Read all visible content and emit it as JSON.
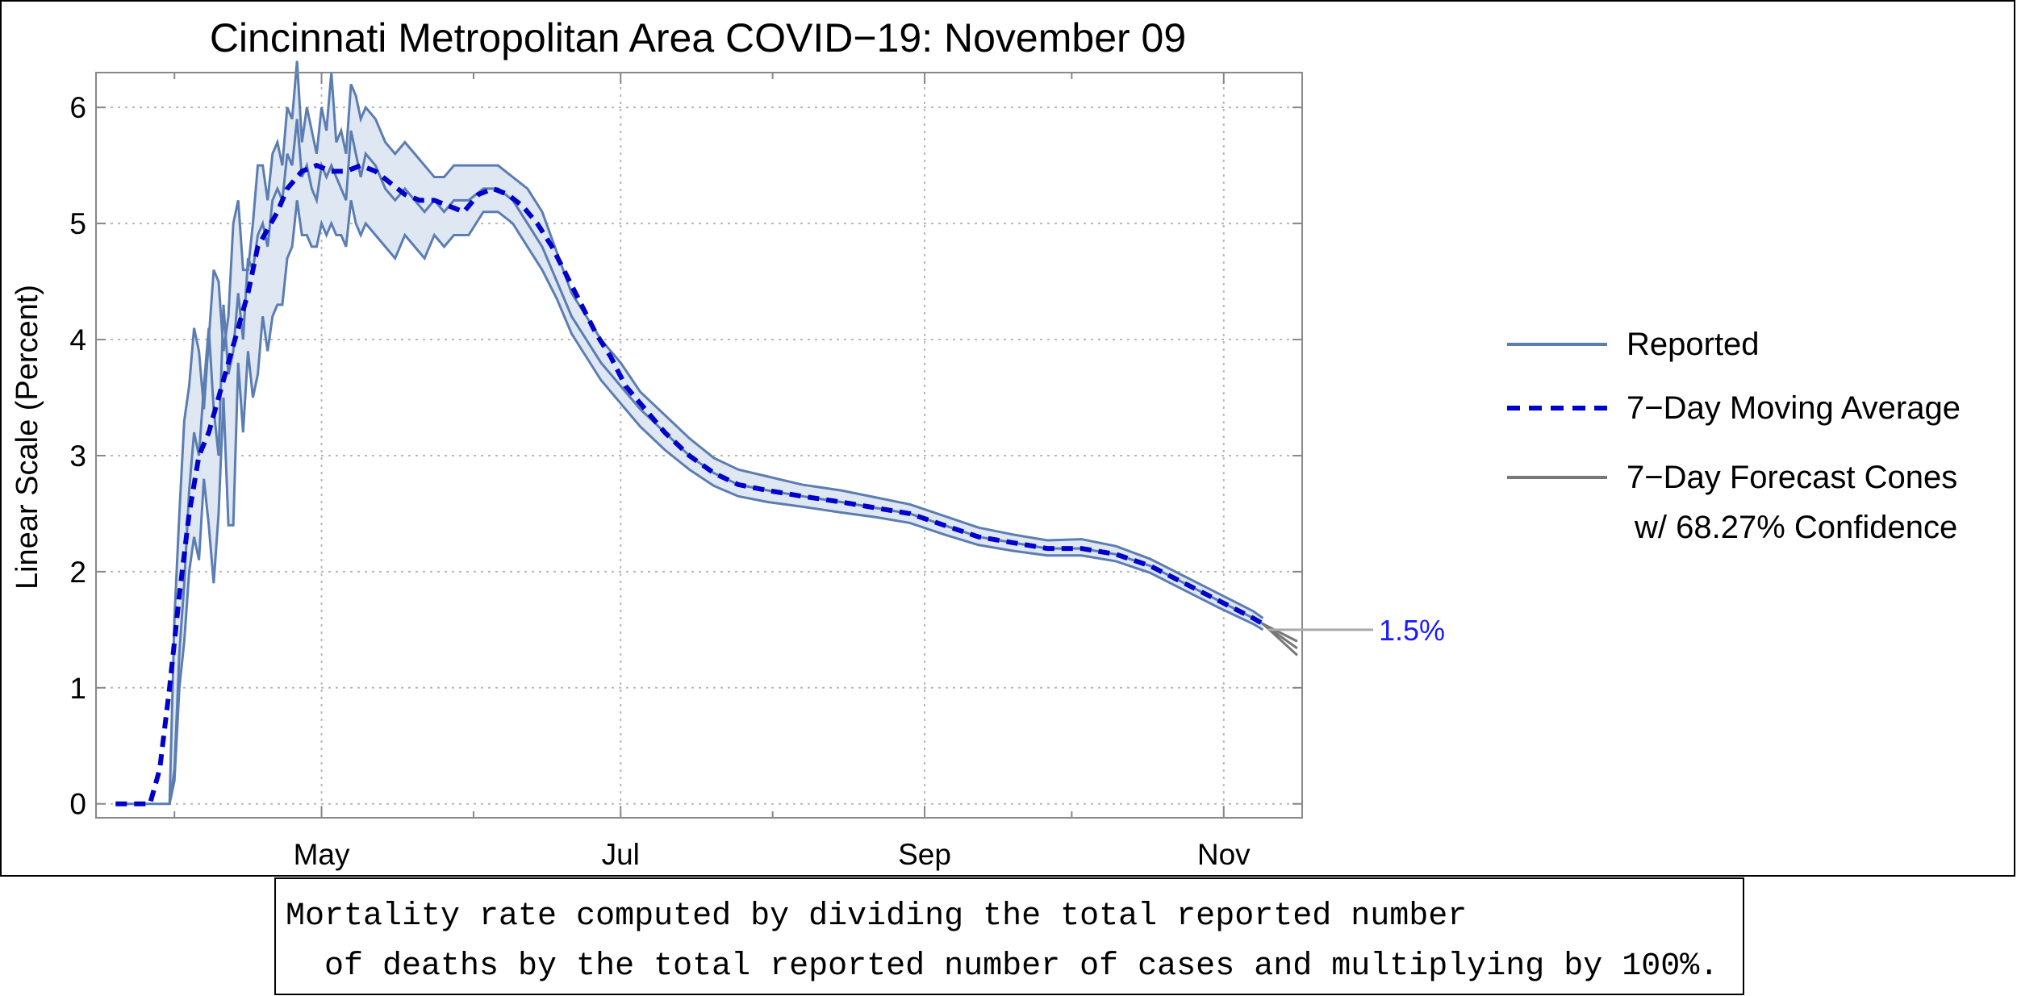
{
  "chart_data": {
    "type": "line",
    "title": "Cincinnati Metropolitan Area COVID−19: November 09",
    "ylabel": "Linear Scale (Percent)",
    "xlabel": "",
    "ylim": [
      -0.12,
      6.3
    ],
    "xlim": [
      "2020-03-16",
      "2020-11-17"
    ],
    "yticks": [
      0,
      1,
      2,
      3,
      4,
      5,
      6
    ],
    "xticks": [
      {
        "label": "May",
        "date": "2020-05-01"
      },
      {
        "label": "Jul",
        "date": "2020-07-01"
      },
      {
        "label": "Sep",
        "date": "2020-09-01"
      },
      {
        "label": "Nov",
        "date": "2020-11-01"
      }
    ],
    "grid": true,
    "legend_position": "right",
    "legend": [
      {
        "label": "Reported",
        "style": "solid",
        "color": "#5b7db1"
      },
      {
        "label": "7−Day Moving Average",
        "style": "dashed",
        "color": "#0000cc"
      },
      {
        "label": "7−Day Forecast Cones",
        "label2": "w/ 68.27% Confidence",
        "style": "solid",
        "color": "#777777"
      }
    ],
    "callout": {
      "label": "1.5%",
      "value": 1.5
    },
    "colors": {
      "reported": "#5b7db1",
      "band_fill": "#dfe7f2",
      "moving_average": "#0000cc",
      "forecast": "#777777",
      "callout": "#1a1aff"
    },
    "series": [
      {
        "name": "Reported",
        "points": [
          [
            "2020-03-20",
            0
          ],
          [
            "2020-03-27",
            0
          ],
          [
            "2020-03-31",
            0
          ],
          [
            "2020-04-01",
            0.3
          ],
          [
            "2020-04-02",
            1.3
          ],
          [
            "2020-04-03",
            1.9
          ],
          [
            "2020-04-04",
            2.7
          ],
          [
            "2020-04-05",
            3.2
          ],
          [
            "2020-04-06",
            3.0
          ],
          [
            "2020-04-07",
            3.6
          ],
          [
            "2020-04-08",
            4.1
          ],
          [
            "2020-04-09",
            3.4
          ],
          [
            "2020-04-10",
            3.0
          ],
          [
            "2020-04-11",
            4.3
          ],
          [
            "2020-04-12",
            3.7
          ],
          [
            "2020-04-13",
            3.9
          ],
          [
            "2020-04-14",
            4.4
          ],
          [
            "2020-04-15",
            4.0
          ],
          [
            "2020-04-16",
            4.7
          ],
          [
            "2020-04-17",
            4.6
          ],
          [
            "2020-04-18",
            4.9
          ],
          [
            "2020-04-19",
            5.0
          ],
          [
            "2020-04-20",
            4.8
          ],
          [
            "2020-04-21",
            5.2
          ],
          [
            "2020-04-22",
            5.3
          ],
          [
            "2020-04-23",
            5.2
          ],
          [
            "2020-04-24",
            5.6
          ],
          [
            "2020-04-25",
            5.5
          ],
          [
            "2020-04-26",
            5.9
          ],
          [
            "2020-04-27",
            5.4
          ],
          [
            "2020-04-28",
            5.5
          ],
          [
            "2020-04-29",
            5.3
          ],
          [
            "2020-04-30",
            5.2
          ],
          [
            "2020-05-01",
            5.5
          ],
          [
            "2020-05-02",
            5.4
          ],
          [
            "2020-05-03",
            5.5
          ],
          [
            "2020-05-04",
            5.4
          ],
          [
            "2020-05-05",
            5.3
          ],
          [
            "2020-05-06",
            5.2
          ],
          [
            "2020-05-07",
            5.8
          ],
          [
            "2020-05-08",
            5.6
          ],
          [
            "2020-05-09",
            5.4
          ],
          [
            "2020-05-10",
            5.6
          ],
          [
            "2020-05-12",
            5.5
          ],
          [
            "2020-05-14",
            5.3
          ],
          [
            "2020-05-16",
            5.2
          ],
          [
            "2020-05-18",
            5.3
          ],
          [
            "2020-05-20",
            5.2
          ],
          [
            "2020-05-22",
            5.1
          ],
          [
            "2020-05-24",
            5.2
          ],
          [
            "2020-05-26",
            5.1
          ],
          [
            "2020-05-28",
            5.2
          ],
          [
            "2020-05-31",
            5.2
          ],
          [
            "2020-06-03",
            5.3
          ],
          [
            "2020-06-06",
            5.3
          ],
          [
            "2020-06-09",
            5.2
          ],
          [
            "2020-06-12",
            5.0
          ],
          [
            "2020-06-15",
            4.8
          ],
          [
            "2020-06-18",
            4.5
          ],
          [
            "2020-06-21",
            4.2
          ],
          [
            "2020-06-24",
            4.0
          ],
          [
            "2020-06-27",
            3.8
          ],
          [
            "2020-07-01",
            3.6
          ],
          [
            "2020-07-05",
            3.4
          ],
          [
            "2020-07-10",
            3.2
          ],
          [
            "2020-07-15",
            3.0
          ],
          [
            "2020-07-20",
            2.85
          ],
          [
            "2020-07-25",
            2.75
          ],
          [
            "2020-07-31",
            2.7
          ],
          [
            "2020-08-07",
            2.65
          ],
          [
            "2020-08-15",
            2.6
          ],
          [
            "2020-08-22",
            2.55
          ],
          [
            "2020-08-29",
            2.5
          ],
          [
            "2020-09-05",
            2.4
          ],
          [
            "2020-09-12",
            2.3
          ],
          [
            "2020-09-19",
            2.25
          ],
          [
            "2020-09-26",
            2.2
          ],
          [
            "2020-10-03",
            2.2
          ],
          [
            "2020-10-10",
            2.15
          ],
          [
            "2020-10-17",
            2.05
          ],
          [
            "2020-10-24",
            1.9
          ],
          [
            "2020-10-31",
            1.75
          ],
          [
            "2020-11-07",
            1.6
          ],
          [
            "2020-11-09",
            1.55
          ]
        ]
      },
      {
        "name": "7−Day Moving Average",
        "points": [
          [
            "2020-03-20",
            0
          ],
          [
            "2020-03-27",
            0
          ],
          [
            "2020-03-29",
            0.3
          ],
          [
            "2020-03-31",
            1.0
          ],
          [
            "2020-04-02",
            1.8
          ],
          [
            "2020-04-04",
            2.5
          ],
          [
            "2020-04-06",
            3.0
          ],
          [
            "2020-04-08",
            3.2
          ],
          [
            "2020-04-10",
            3.5
          ],
          [
            "2020-04-12",
            3.8
          ],
          [
            "2020-04-14",
            4.1
          ],
          [
            "2020-04-16",
            4.4
          ],
          [
            "2020-04-18",
            4.8
          ],
          [
            "2020-04-20",
            4.95
          ],
          [
            "2020-04-22",
            5.1
          ],
          [
            "2020-04-24",
            5.3
          ],
          [
            "2020-04-27",
            5.45
          ],
          [
            "2020-04-30",
            5.5
          ],
          [
            "2020-05-03",
            5.45
          ],
          [
            "2020-05-06",
            5.45
          ],
          [
            "2020-05-09",
            5.5
          ],
          [
            "2020-05-12",
            5.45
          ],
          [
            "2020-05-15",
            5.35
          ],
          [
            "2020-05-18",
            5.25
          ],
          [
            "2020-05-21",
            5.2
          ],
          [
            "2020-05-24",
            5.2
          ],
          [
            "2020-05-27",
            5.15
          ],
          [
            "2020-05-30",
            5.1
          ],
          [
            "2020-06-02",
            5.25
          ],
          [
            "2020-06-05",
            5.3
          ],
          [
            "2020-06-08",
            5.25
          ],
          [
            "2020-06-11",
            5.15
          ],
          [
            "2020-06-14",
            5.0
          ],
          [
            "2020-06-17",
            4.8
          ],
          [
            "2020-06-20",
            4.55
          ],
          [
            "2020-06-23",
            4.3
          ],
          [
            "2020-06-26",
            4.05
          ],
          [
            "2020-06-29",
            3.85
          ],
          [
            "2020-07-02",
            3.6
          ],
          [
            "2020-07-06",
            3.4
          ],
          [
            "2020-07-10",
            3.2
          ],
          [
            "2020-07-15",
            3.0
          ],
          [
            "2020-07-20",
            2.85
          ],
          [
            "2020-07-25",
            2.75
          ],
          [
            "2020-07-31",
            2.7
          ],
          [
            "2020-08-07",
            2.65
          ],
          [
            "2020-08-15",
            2.6
          ],
          [
            "2020-08-22",
            2.55
          ],
          [
            "2020-08-29",
            2.5
          ],
          [
            "2020-09-05",
            2.4
          ],
          [
            "2020-09-12",
            2.3
          ],
          [
            "2020-09-19",
            2.25
          ],
          [
            "2020-09-26",
            2.2
          ],
          [
            "2020-10-03",
            2.2
          ],
          [
            "2020-10-10",
            2.15
          ],
          [
            "2020-10-17",
            2.05
          ],
          [
            "2020-10-24",
            1.9
          ],
          [
            "2020-10-31",
            1.75
          ],
          [
            "2020-11-07",
            1.6
          ],
          [
            "2020-11-09",
            1.55
          ]
        ]
      }
    ],
    "band": {
      "name": "Reported",
      "points": [
        [
          "2020-03-31",
          0,
          0
        ],
        [
          "2020-04-01",
          0.2,
          1.6
        ],
        [
          "2020-04-02",
          1.0,
          2.5
        ],
        [
          "2020-04-03",
          1.4,
          3.3
        ],
        [
          "2020-04-04",
          2.0,
          3.6
        ],
        [
          "2020-04-05",
          2.3,
          4.1
        ],
        [
          "2020-04-06",
          2.1,
          3.9
        ],
        [
          "2020-04-07",
          2.8,
          3.4
        ],
        [
          "2020-04-08",
          2.4,
          4.0
        ],
        [
          "2020-04-09",
          1.9,
          4.6
        ],
        [
          "2020-04-10",
          2.5,
          4.5
        ],
        [
          "2020-04-11",
          3.5,
          3.9
        ],
        [
          "2020-04-12",
          2.4,
          4.2
        ],
        [
          "2020-04-13",
          2.4,
          5.0
        ],
        [
          "2020-04-14",
          3.8,
          5.2
        ],
        [
          "2020-04-15",
          3.2,
          4.6
        ],
        [
          "2020-04-16",
          3.9,
          4.6
        ],
        [
          "2020-04-17",
          3.5,
          5.0
        ],
        [
          "2020-04-18",
          3.7,
          5.5
        ],
        [
          "2020-04-19",
          4.2,
          5.5
        ],
        [
          "2020-04-20",
          3.9,
          5.2
        ],
        [
          "2020-04-21",
          4.2,
          5.6
        ],
        [
          "2020-04-22",
          4.3,
          5.7
        ],
        [
          "2020-04-23",
          4.3,
          5.5
        ],
        [
          "2020-04-24",
          4.7,
          6.0
        ],
        [
          "2020-04-25",
          4.8,
          5.9
        ],
        [
          "2020-04-26",
          5.2,
          6.4
        ],
        [
          "2020-04-27",
          4.9,
          5.7
        ],
        [
          "2020-04-28",
          4.9,
          6.0
        ],
        [
          "2020-04-29",
          4.8,
          5.8
        ],
        [
          "2020-04-30",
          4.8,
          5.6
        ],
        [
          "2020-05-01",
          5.0,
          6.0
        ],
        [
          "2020-05-02",
          4.9,
          5.8
        ],
        [
          "2020-05-03",
          5.0,
          6.3
        ],
        [
          "2020-05-04",
          4.9,
          5.7
        ],
        [
          "2020-05-05",
          4.9,
          5.8
        ],
        [
          "2020-05-06",
          4.8,
          5.6
        ],
        [
          "2020-05-07",
          5.2,
          6.2
        ],
        [
          "2020-05-08",
          5.0,
          6.1
        ],
        [
          "2020-05-09",
          4.9,
          5.9
        ],
        [
          "2020-05-10",
          5.0,
          6.0
        ],
        [
          "2020-05-12",
          4.9,
          5.9
        ],
        [
          "2020-05-14",
          4.8,
          5.7
        ],
        [
          "2020-05-16",
          4.7,
          5.6
        ],
        [
          "2020-05-18",
          4.9,
          5.7
        ],
        [
          "2020-05-20",
          4.8,
          5.6
        ],
        [
          "2020-05-22",
          4.7,
          5.5
        ],
        [
          "2020-05-24",
          4.9,
          5.4
        ],
        [
          "2020-05-26",
          4.8,
          5.4
        ],
        [
          "2020-05-28",
          4.9,
          5.5
        ],
        [
          "2020-05-31",
          4.9,
          5.5
        ],
        [
          "2020-06-03",
          5.1,
          5.5
        ],
        [
          "2020-06-06",
          5.1,
          5.5
        ],
        [
          "2020-06-09",
          5.0,
          5.4
        ],
        [
          "2020-06-12",
          4.8,
          5.3
        ],
        [
          "2020-06-15",
          4.6,
          5.1
        ],
        [
          "2020-06-18",
          4.35,
          4.75
        ],
        [
          "2020-06-21",
          4.05,
          4.4
        ],
        [
          "2020-06-24",
          3.85,
          4.2
        ],
        [
          "2020-06-27",
          3.65,
          4.0
        ],
        [
          "2020-07-01",
          3.45,
          3.8
        ],
        [
          "2020-07-05",
          3.25,
          3.55
        ],
        [
          "2020-07-10",
          3.05,
          3.35
        ],
        [
          "2020-07-15",
          2.88,
          3.15
        ],
        [
          "2020-07-20",
          2.74,
          2.98
        ],
        [
          "2020-07-25",
          2.65,
          2.88
        ],
        [
          "2020-07-31",
          2.6,
          2.82
        ],
        [
          "2020-08-07",
          2.56,
          2.75
        ],
        [
          "2020-08-15",
          2.51,
          2.7
        ],
        [
          "2020-08-22",
          2.47,
          2.64
        ],
        [
          "2020-08-29",
          2.42,
          2.58
        ],
        [
          "2020-09-05",
          2.32,
          2.48
        ],
        [
          "2020-09-12",
          2.23,
          2.38
        ],
        [
          "2020-09-19",
          2.18,
          2.32
        ],
        [
          "2020-09-26",
          2.14,
          2.27
        ],
        [
          "2020-10-03",
          2.14,
          2.28
        ],
        [
          "2020-10-10",
          2.09,
          2.22
        ],
        [
          "2020-10-17",
          1.99,
          2.11
        ],
        [
          "2020-10-24",
          1.84,
          1.96
        ],
        [
          "2020-10-31",
          1.69,
          1.81
        ],
        [
          "2020-11-07",
          1.55,
          1.66
        ],
        [
          "2020-11-09",
          1.5,
          1.6
        ]
      ]
    },
    "forecast_cones": [
      {
        "from": [
          "2020-11-09",
          1.55
        ],
        "to": [
          "2020-11-16",
          1.4
        ]
      },
      {
        "from": [
          "2020-11-09",
          1.55
        ],
        "to": [
          "2020-11-16",
          1.34
        ]
      },
      {
        "from": [
          "2020-11-09",
          1.55
        ],
        "to": [
          "2020-11-16",
          1.28
        ]
      }
    ]
  },
  "footnote": {
    "line1": "Mortality rate computed by dividing the total reported number",
    "line2": "  of deaths by the total reported number of cases and multiplying by 100%."
  }
}
